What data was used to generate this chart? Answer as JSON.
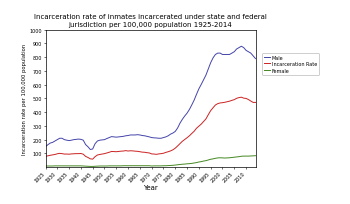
{
  "title": "Incarceration rate of inmates incarcerated under state and federal\njurisdiction per 100,000 population 1925-2014",
  "xlabel": "Year",
  "ylabel": "Incarceration rate per 100,000 population",
  "ylim": [
    0,
    1000
  ],
  "yticks": [
    100,
    200,
    300,
    400,
    500,
    600,
    700,
    800,
    900,
    1000
  ],
  "xlim": [
    1925,
    2014
  ],
  "xticks": [
    1925,
    1930,
    1935,
    1940,
    1945,
    1950,
    1955,
    1960,
    1965,
    1970,
    1975,
    1980,
    1985,
    1990,
    1995,
    2000,
    2005,
    2010
  ],
  "male_color": "#4444aa",
  "incarceration_color": "#cc2222",
  "female_color": "#448822",
  "legend_labels": [
    "Male",
    "Incarceration Rate",
    "Female"
  ],
  "years": [
    1925,
    1926,
    1927,
    1928,
    1929,
    1930,
    1931,
    1932,
    1933,
    1934,
    1935,
    1936,
    1937,
    1938,
    1939,
    1940,
    1941,
    1942,
    1943,
    1944,
    1945,
    1946,
    1947,
    1948,
    1949,
    1950,
    1951,
    1952,
    1953,
    1954,
    1955,
    1956,
    1957,
    1958,
    1959,
    1960,
    1961,
    1962,
    1963,
    1964,
    1965,
    1966,
    1967,
    1968,
    1969,
    1970,
    1971,
    1972,
    1973,
    1974,
    1975,
    1976,
    1977,
    1978,
    1979,
    1980,
    1981,
    1982,
    1983,
    1984,
    1985,
    1986,
    1987,
    1988,
    1989,
    1990,
    1991,
    1992,
    1993,
    1994,
    1995,
    1996,
    1997,
    1998,
    1999,
    2000,
    2001,
    2002,
    2003,
    2004,
    2005,
    2006,
    2007,
    2008,
    2009,
    2010,
    2011,
    2012,
    2013,
    2014
  ],
  "male": [
    149,
    163,
    175,
    180,
    190,
    200,
    210,
    210,
    200,
    196,
    193,
    196,
    200,
    202,
    204,
    202,
    196,
    164,
    148,
    128,
    132,
    170,
    190,
    196,
    198,
    200,
    208,
    215,
    222,
    220,
    218,
    220,
    222,
    224,
    228,
    230,
    234,
    234,
    234,
    236,
    234,
    230,
    228,
    224,
    220,
    215,
    213,
    212,
    210,
    210,
    215,
    220,
    228,
    240,
    248,
    260,
    285,
    320,
    348,
    372,
    393,
    420,
    453,
    488,
    530,
    570,
    602,
    636,
    670,
    715,
    760,
    795,
    820,
    830,
    830,
    820,
    820,
    820,
    820,
    830,
    840,
    860,
    870,
    880,
    870,
    850,
    840,
    830,
    810,
    790
  ],
  "incarceration_rate": [
    79,
    82,
    86,
    89,
    92,
    97,
    100,
    98,
    95,
    95,
    94,
    96,
    97,
    98,
    98,
    99,
    94,
    78,
    70,
    60,
    58,
    76,
    88,
    92,
    95,
    98,
    103,
    108,
    114,
    113,
    112,
    114,
    116,
    117,
    120,
    117,
    119,
    118,
    116,
    115,
    112,
    109,
    108,
    105,
    103,
    96,
    95,
    93,
    96,
    98,
    101,
    107,
    112,
    118,
    126,
    138,
    154,
    171,
    188,
    201,
    214,
    228,
    245,
    261,
    283,
    298,
    313,
    332,
    351,
    382,
    411,
    432,
    452,
    462,
    467,
    469,
    472,
    476,
    480,
    486,
    491,
    501,
    506,
    509,
    502,
    500,
    492,
    481,
    471,
    471
  ],
  "female": [
    8,
    8,
    8,
    8,
    9,
    9,
    9,
    9,
    9,
    9,
    9,
    9,
    9,
    9,
    9,
    9,
    8,
    7,
    6,
    5,
    5,
    6,
    7,
    8,
    8,
    8,
    8,
    9,
    9,
    9,
    9,
    9,
    9,
    10,
    10,
    10,
    10,
    10,
    10,
    10,
    10,
    10,
    10,
    10,
    10,
    8,
    9,
    9,
    9,
    9,
    10,
    10,
    11,
    12,
    13,
    15,
    17,
    19,
    21,
    22,
    24,
    25,
    27,
    30,
    33,
    37,
    40,
    44,
    47,
    52,
    57,
    60,
    64,
    67,
    68,
    67,
    66,
    67,
    68,
    70,
    72,
    74,
    76,
    79,
    80,
    80,
    80,
    81,
    82,
    83
  ]
}
